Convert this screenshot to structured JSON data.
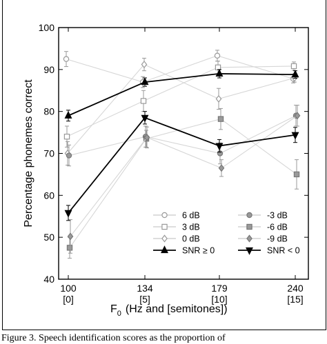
{
  "chart_data": {
    "type": "line",
    "xlabel": "F",
    "xlabel_sub": "0",
    "xlabel_suffix": "(Hz and [semitones])",
    "ylabel": "Percentage phonemes correct",
    "ylim": [
      40,
      100
    ],
    "yticks": [
      "40",
      "50",
      "60",
      "70",
      "80",
      "90",
      "100"
    ],
    "x_hz": [
      100,
      134,
      179,
      240
    ],
    "x_tick_labels": [
      "100",
      "134",
      "179",
      "240"
    ],
    "x_tick_sublabels": [
      "[0]",
      "[5]",
      "[10]",
      "[15]"
    ],
    "legend_placement": "lower-right",
    "series": [
      {
        "name": "6 dB",
        "marker": "circle",
        "fill": "#ffffff",
        "stroke": "#999999",
        "values": [
          92.5,
          87.0,
          93.3,
          87.8
        ],
        "errors": [
          1.8,
          1.3,
          1.3,
          1.0
        ]
      },
      {
        "name": "3 dB",
        "marker": "square",
        "fill": "#ffffff",
        "stroke": "#999999",
        "values": [
          74.0,
          82.5,
          90.5,
          90.8
        ],
        "errors": [
          2.5,
          2.5,
          1.5,
          1.0
        ]
      },
      {
        "name": "0 dB",
        "marker": "diamond",
        "fill": "#ffffff",
        "stroke": "#999999",
        "values": [
          70.0,
          91.2,
          83.0,
          88.0
        ],
        "errors": [
          2.8,
          1.5,
          2.5,
          1.0
        ]
      },
      {
        "name": "SNR ≥ 0",
        "marker": "triangle-up",
        "fill": "#000000",
        "stroke": "#000000",
        "bold": true,
        "values": [
          79.0,
          87.0,
          89.0,
          88.8
        ],
        "errors": [
          1.3,
          1.0,
          1.0,
          0.9
        ]
      },
      {
        "name": "-3 dB",
        "marker": "circle",
        "fill": "#999999",
        "stroke": "#777777",
        "values": [
          69.5,
          74.0,
          70.0,
          79.0
        ],
        "errors": [
          2.5,
          2.5,
          2.5,
          2.5
        ]
      },
      {
        "name": "-6 dB",
        "marker": "square",
        "fill": "#999999",
        "stroke": "#777777",
        "values": [
          47.5,
          73.5,
          78.2,
          65.0
        ],
        "errors": [
          2.5,
          2.0,
          2.5,
          3.5
        ]
      },
      {
        "name": "-9 dB",
        "marker": "diamond",
        "fill": "#999999",
        "stroke": "#777777",
        "values": [
          50.2,
          73.8,
          66.5,
          79.0
        ],
        "errors": [
          4.0,
          2.5,
          2.0,
          2.5
        ]
      },
      {
        "name": "SNR < 0",
        "marker": "triangle-down",
        "fill": "#000000",
        "stroke": "#000000",
        "bold": true,
        "values": [
          55.8,
          78.5,
          71.8,
          74.4
        ],
        "errors": [
          1.8,
          1.5,
          1.5,
          1.8
        ]
      }
    ]
  },
  "caption": "Figure 3. Speech identification scores as the proportion of"
}
